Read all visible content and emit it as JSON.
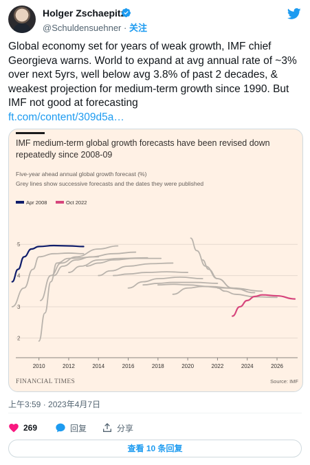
{
  "author": {
    "name": "Holger Zschaepitz",
    "handle": "@Schuldensuehner",
    "separator": "·",
    "follow_label": "关注"
  },
  "tweet": {
    "text": "Global economy set for years of weak growth, IMF chief Georgieva warns. World to expand at avg annual rate of ~3% over next 5yrs, well below avg 3.8% of past 2 decades, & weakest projection for medium-term growth since 1990. But IMF not good at forecasting",
    "link": "ft.com/content/309d5a…",
    "timestamp": "上午3:59 · 2023年4月7日"
  },
  "actions": {
    "likes": "269",
    "reply_label": "回复",
    "share_label": "分享",
    "view_replies_label": "查看 10 条回复"
  },
  "colors": {
    "accent": "#1d9bf0",
    "like": "#f91880",
    "ft_background": "#fff1e5",
    "series_apr2008": "#0f1d6b",
    "series_oct2022": "#d6457c",
    "series_grey": "#b9b3ac"
  },
  "icons": [
    "verified-badge-icon",
    "twitter-bird-icon",
    "heart-icon",
    "reply-icon",
    "share-icon"
  ],
  "chart_data": {
    "type": "line",
    "title": "IMF medium-term global growth forecasts have been revised down repeatedly since 2008-09",
    "subtitle": "Five-year ahead annual global growth forecast (%)",
    "subtitle2": "Grey lines show successive forecasts and the dates they were published",
    "source": "Source: IMF",
    "publisher": "FINANCIAL TIMES",
    "xlabel": "",
    "ylabel": "",
    "xlim": [
      2009,
      2027.2
    ],
    "ylim": [
      1.5,
      5.6
    ],
    "x_ticks": [
      "2010",
      "2012",
      "2014",
      "2016",
      "2018",
      "2020",
      "2022",
      "2024",
      "2026"
    ],
    "y_ticks": [
      "2",
      "3",
      "4",
      "5"
    ],
    "grid": true,
    "legend_position": "top-left",
    "series": [
      {
        "name": "Apr 2008",
        "color": "#0f1d6b",
        "highlight": true,
        "x": [
          2008.2,
          2008.6,
          2009,
          2009.5,
          2010,
          2011,
          2012,
          2013
        ],
        "y": [
          3.8,
          4.2,
          4.6,
          4.85,
          4.93,
          4.96,
          4.95,
          4.93
        ]
      },
      {
        "name": "Oct 2022",
        "color": "#d6457c",
        "highlight": true,
        "x": [
          2023,
          2023.5,
          2024,
          2024.5,
          2025,
          2026,
          2027.2
        ],
        "y": [
          2.7,
          3.0,
          3.2,
          3.33,
          3.38,
          3.35,
          3.25
        ]
      },
      {
        "name": "",
        "color": "#b9b3ac",
        "x": [
          2008.2,
          2009,
          2009.6,
          2010,
          2011,
          2012,
          2013
        ],
        "y": [
          3.0,
          3.6,
          4.2,
          4.6,
          4.7,
          4.72,
          4.7
        ]
      },
      {
        "name": "",
        "color": "#b9b3ac",
        "x": [
          2010,
          2010.4,
          2010.8,
          2011.2,
          2012,
          2014
        ],
        "y": [
          1.9,
          2.8,
          3.8,
          4.4,
          4.55,
          4.6
        ]
      },
      {
        "name": "",
        "color": "#b9b3ac",
        "x": [
          2010.1,
          2010.8,
          2011.5,
          2012.5,
          2014,
          2015.3
        ],
        "y": [
          3.2,
          4.0,
          4.4,
          4.6,
          4.85,
          4.95
        ]
      },
      {
        "name": "",
        "color": "#b9b3ac",
        "x": [
          2011,
          2011.6,
          2012.5,
          2013.5,
          2015,
          2016.5
        ],
        "y": [
          4.0,
          4.3,
          4.5,
          4.6,
          4.7,
          4.75
        ]
      },
      {
        "name": "",
        "color": "#b9b3ac",
        "x": [
          2012,
          2012.8,
          2014,
          2015.5,
          2017.3
        ],
        "y": [
          4.1,
          4.3,
          4.5,
          4.55,
          4.57
        ]
      },
      {
        "name": "",
        "color": "#b9b3ac",
        "x": [
          2013.2,
          2014,
          2015,
          2016.5,
          2018.2
        ],
        "y": [
          4.3,
          4.4,
          4.5,
          4.55,
          4.55
        ]
      },
      {
        "name": "",
        "color": "#b9b3ac",
        "x": [
          2014,
          2014.8,
          2016,
          2017.5,
          2019
        ],
        "y": [
          4.0,
          4.15,
          4.3,
          4.38,
          4.4
        ]
      },
      {
        "name": "",
        "color": "#b9b3ac",
        "x": [
          2015,
          2016,
          2017.2,
          2018.6,
          2020
        ],
        "y": [
          4.0,
          4.05,
          4.1,
          4.12,
          4.1
        ]
      },
      {
        "name": "",
        "color": "#b9b3ac",
        "x": [
          2016,
          2017,
          2018,
          2019.5,
          2021
        ],
        "y": [
          3.6,
          3.8,
          3.9,
          3.95,
          3.9
        ]
      },
      {
        "name": "",
        "color": "#b9b3ac",
        "x": [
          2017,
          2018,
          2019,
          2020.5,
          2022
        ],
        "y": [
          3.7,
          3.75,
          3.78,
          3.78,
          3.75
        ]
      },
      {
        "name": "",
        "color": "#b9b3ac",
        "x": [
          2018,
          2019,
          2020,
          2021.5,
          2023
        ],
        "y": [
          3.7,
          3.72,
          3.7,
          3.65,
          3.6
        ]
      },
      {
        "name": "",
        "color": "#b9b3ac",
        "x": [
          2019,
          2020,
          2021,
          2022.5,
          2024
        ],
        "y": [
          3.4,
          3.6,
          3.65,
          3.6,
          3.55
        ]
      },
      {
        "name": "",
        "color": "#b9b3ac",
        "x": [
          2020.2,
          2020.6,
          2021.2,
          2022,
          2023,
          2025
        ],
        "y": [
          5.2,
          4.8,
          4.3,
          3.9,
          3.6,
          3.5
        ]
      },
      {
        "name": "",
        "color": "#b9b3ac",
        "x": [
          2021,
          2021.4,
          2022,
          2023,
          2024.5
        ],
        "y": [
          4.5,
          4.2,
          3.9,
          3.6,
          3.45
        ]
      },
      {
        "name": "",
        "color": "#b9b3ac",
        "x": [
          2022,
          2022.5,
          2023.2,
          2024.5,
          2026
        ],
        "y": [
          3.6,
          3.5,
          3.4,
          3.32,
          3.3
        ]
      }
    ]
  }
}
